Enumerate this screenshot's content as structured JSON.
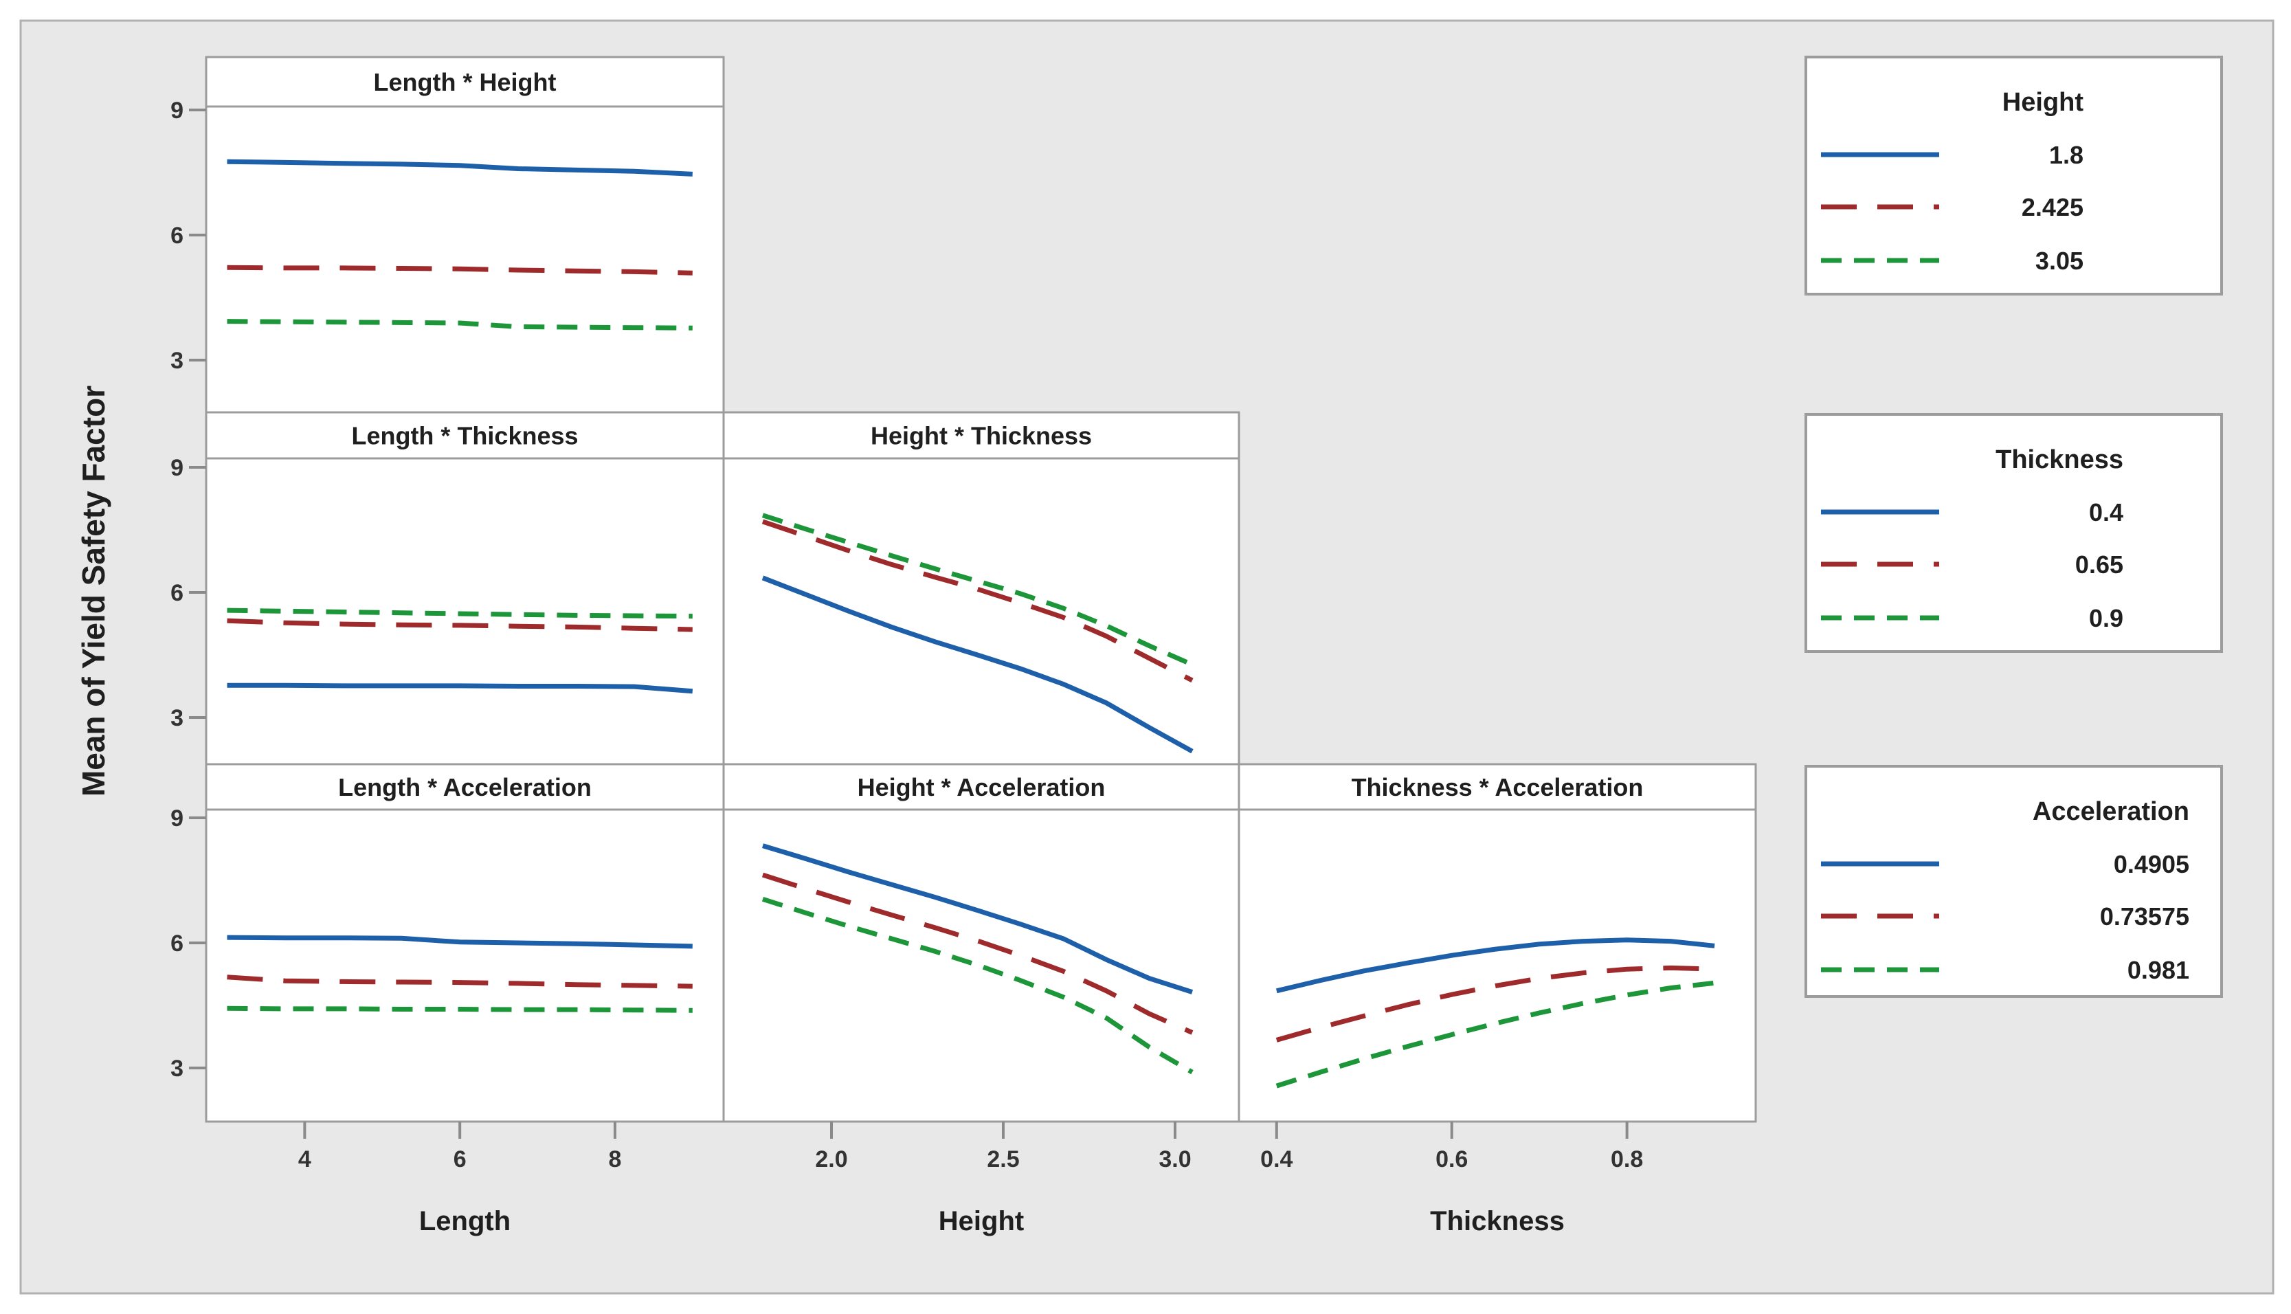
{
  "figure": {
    "ylabel": "Mean of Yield Safety Factor",
    "background_color": "#e8e8e8",
    "panel_fill": "#ffffff",
    "border_color": "#9c9c9c",
    "outer_border_color": "#b0b0b0",
    "tick_color": "#8a8a8a",
    "levels": {
      "1": {
        "color": "#1e5fa9",
        "dash": "solid"
      },
      "2": {
        "color": "#9e2a2b",
        "dash": "long-dash"
      },
      "3": {
        "color": "#1c9638",
        "dash": "short-dash"
      }
    }
  },
  "legends": [
    {
      "title": "Height",
      "entries": [
        {
          "label": "1.8",
          "level": "1"
        },
        {
          "label": "2.425",
          "level": "2"
        },
        {
          "label": "3.05",
          "level": "3"
        }
      ]
    },
    {
      "title": "Thickness",
      "entries": [
        {
          "label": "0.4",
          "level": "1"
        },
        {
          "label": "0.65",
          "level": "2"
        },
        {
          "label": "0.9",
          "level": "3"
        }
      ]
    },
    {
      "title": "Acceleration",
      "entries": [
        {
          "label": "0.4905",
          "level": "1"
        },
        {
          "label": "0.73575",
          "level": "2"
        },
        {
          "label": "0.981",
          "level": "3"
        }
      ]
    }
  ],
  "chart_data": {
    "type": "line",
    "title": "",
    "ylabel": "Mean of Yield Safety Factor",
    "ylim": [
      1.71,
      9.2
    ],
    "grid": false,
    "yticks": [
      {
        "label": "9",
        "value": 9
      },
      {
        "label": "6",
        "value": 6
      },
      {
        "label": "3",
        "value": 3
      }
    ],
    "x_axes": [
      {
        "label": "Length",
        "min": 2.73,
        "max": 9.4,
        "ticks": [
          {
            "label": "4",
            "value": 4
          },
          {
            "label": "6",
            "value": 6
          },
          {
            "label": "8",
            "value": 8
          }
        ]
      },
      {
        "label": "Height",
        "min": 1.686,
        "max": 3.186,
        "ticks": [
          {
            "label": "2.0",
            "value": 2.0
          },
          {
            "label": "2.5",
            "value": 2.5
          },
          {
            "label": "3.0",
            "value": 3.0
          }
        ]
      },
      {
        "label": "Thickness",
        "min": 0.357,
        "max": 0.947,
        "ticks": [
          {
            "label": "0.4",
            "value": 0.4
          },
          {
            "label": "0.6",
            "value": 0.6
          },
          {
            "label": "0.8",
            "value": 0.8
          }
        ]
      }
    ],
    "panels": [
      {
        "title": "Length * Height",
        "row": 0,
        "col": 0,
        "x": [
          3,
          3.75,
          4.5,
          5.25,
          6,
          6.75,
          7.5,
          8.25,
          9
        ],
        "series": [
          {
            "name": "1.8",
            "level": "1",
            "values": [
              7.76,
              7.74,
              7.72,
              7.7,
              7.67,
              7.59,
              7.56,
              7.53,
              7.46
            ]
          },
          {
            "name": "2.425",
            "level": "2",
            "values": [
              5.22,
              5.21,
              5.21,
              5.2,
              5.19,
              5.16,
              5.14,
              5.12,
              5.09
            ]
          },
          {
            "name": "3.05",
            "level": "3",
            "values": [
              3.93,
              3.92,
              3.91,
              3.9,
              3.89,
              3.8,
              3.79,
              3.78,
              3.77
            ]
          }
        ]
      },
      {
        "title": "Length * Thickness",
        "row": 1,
        "col": 0,
        "x": [
          3,
          3.75,
          4.5,
          5.25,
          6,
          6.75,
          7.5,
          8.25,
          9
        ],
        "series": [
          {
            "name": "0.9",
            "level": "3",
            "values": [
              5.57,
              5.55,
              5.53,
              5.51,
              5.49,
              5.47,
              5.45,
              5.44,
              5.43
            ]
          },
          {
            "name": "0.65",
            "level": "2",
            "values": [
              5.32,
              5.27,
              5.24,
              5.22,
              5.21,
              5.19,
              5.17,
              5.14,
              5.11
            ]
          },
          {
            "name": "0.4",
            "level": "1",
            "values": [
              3.77,
              3.77,
              3.76,
              3.76,
              3.76,
              3.75,
              3.75,
              3.74,
              3.63
            ]
          }
        ]
      },
      {
        "title": "Height * Thickness",
        "row": 1,
        "col": 1,
        "x": [
          1.8,
          1.925,
          2.05,
          2.175,
          2.3,
          2.425,
          2.55,
          2.675,
          2.8,
          2.925,
          3.05
        ],
        "series": [
          {
            "name": "0.9",
            "level": "3",
            "values": [
              7.85,
              7.52,
              7.2,
              6.88,
              6.57,
              6.27,
              5.97,
              5.62,
              5.2,
              4.72,
              4.27
            ]
          },
          {
            "name": "0.65",
            "level": "2",
            "values": [
              7.7,
              7.35,
              7.0,
              6.67,
              6.37,
              6.08,
              5.75,
              5.4,
              4.95,
              4.42,
              3.89
            ]
          },
          {
            "name": "0.4",
            "level": "1",
            "values": [
              6.35,
              5.95,
              5.55,
              5.17,
              4.82,
              4.5,
              4.17,
              3.8,
              3.35,
              2.76,
              2.19
            ]
          }
        ]
      },
      {
        "title": "Length * Acceleration",
        "row": 2,
        "col": 0,
        "x": [
          3,
          3.75,
          4.5,
          5.25,
          6,
          6.75,
          7.5,
          8.25,
          9
        ],
        "series": [
          {
            "name": "0.4905",
            "level": "1",
            "values": [
              6.13,
              6.12,
              6.12,
              6.11,
              6.02,
              6.0,
              5.98,
              5.95,
              5.92
            ]
          },
          {
            "name": "0.73575",
            "level": "2",
            "values": [
              5.18,
              5.09,
              5.07,
              5.06,
              5.05,
              5.03,
              5.0,
              4.98,
              4.96
            ]
          },
          {
            "name": "0.981",
            "level": "3",
            "values": [
              4.43,
              4.42,
              4.42,
              4.41,
              4.41,
              4.4,
              4.4,
              4.39,
              4.38
            ]
          }
        ]
      },
      {
        "title": "Height * Acceleration",
        "row": 2,
        "col": 1,
        "x": [
          1.8,
          1.925,
          2.05,
          2.175,
          2.3,
          2.425,
          2.55,
          2.675,
          2.8,
          2.925,
          3.05
        ],
        "series": [
          {
            "name": "0.4905",
            "level": "1",
            "values": [
              8.33,
              8.02,
              7.7,
              7.4,
              7.1,
              6.78,
              6.45,
              6.1,
              5.6,
              5.15,
              4.82
            ]
          },
          {
            "name": "0.73575",
            "level": "2",
            "values": [
              7.63,
              7.3,
              6.98,
              6.67,
              6.37,
              6.05,
              5.7,
              5.32,
              4.85,
              4.3,
              3.85
            ]
          },
          {
            "name": "0.981",
            "level": "3",
            "values": [
              7.05,
              6.72,
              6.4,
              6.1,
              5.8,
              5.47,
              5.1,
              4.7,
              4.2,
              3.5,
              2.9
            ]
          }
        ]
      },
      {
        "title": "Thickness * Acceleration",
        "row": 2,
        "col": 2,
        "x": [
          0.4,
          0.45,
          0.5,
          0.55,
          0.6,
          0.65,
          0.7,
          0.75,
          0.8,
          0.85,
          0.9
        ],
        "series": [
          {
            "name": "0.4905",
            "level": "1",
            "values": [
              4.85,
              5.1,
              5.33,
              5.52,
              5.7,
              5.85,
              5.97,
              6.04,
              6.07,
              6.04,
              5.93
            ]
          },
          {
            "name": "0.73575",
            "level": "2",
            "values": [
              3.67,
              3.97,
              4.25,
              4.52,
              4.76,
              4.97,
              5.15,
              5.28,
              5.37,
              5.4,
              5.37
            ]
          },
          {
            "name": "0.981",
            "level": "3",
            "values": [
              2.57,
              2.9,
              3.22,
              3.52,
              3.8,
              4.07,
              4.32,
              4.55,
              4.75,
              4.92,
              5.04
            ]
          }
        ]
      }
    ]
  }
}
